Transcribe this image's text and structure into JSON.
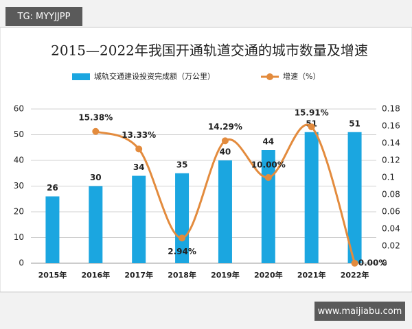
{
  "badges": {
    "top_left": "TG: MYYJJPP",
    "bottom_right": "www.maijiabu.com"
  },
  "chart_data": {
    "type": "bar_line",
    "title": "2015—2022年我国开通轨道交通的城市数量及增速",
    "categories": [
      "2015年",
      "2016年",
      "2017年",
      "2018年",
      "2019年",
      "2020年",
      "2021年",
      "2022年"
    ],
    "series": [
      {
        "name": "城轨交通建设投资完成额（万公里）",
        "type": "bar",
        "color": "#1ba6e0",
        "values": [
          26,
          30,
          34,
          35,
          40,
          44,
          51,
          51
        ]
      },
      {
        "name": "增速（%）",
        "type": "line",
        "axis": "y2",
        "color": "#e38b3d",
        "values": [
          null,
          0.1538,
          0.1333,
          0.0294,
          0.1429,
          0.1,
          0.1591,
          0
        ],
        "value_labels": [
          null,
          "15.38%",
          "13.33%",
          "2.94%",
          "14.29%",
          "10.00%",
          "15.91%",
          "0.00%"
        ]
      }
    ],
    "ylim": [
      0,
      60
    ],
    "yticks": [
      0,
      10,
      20,
      30,
      40,
      50,
      60
    ],
    "y2lim": [
      0,
      0.18
    ],
    "y2ticks": [
      0,
      0.02,
      0.04,
      0.06,
      0.08,
      0.1,
      0.12,
      0.14,
      0.16,
      0.18
    ],
    "grid": true
  }
}
